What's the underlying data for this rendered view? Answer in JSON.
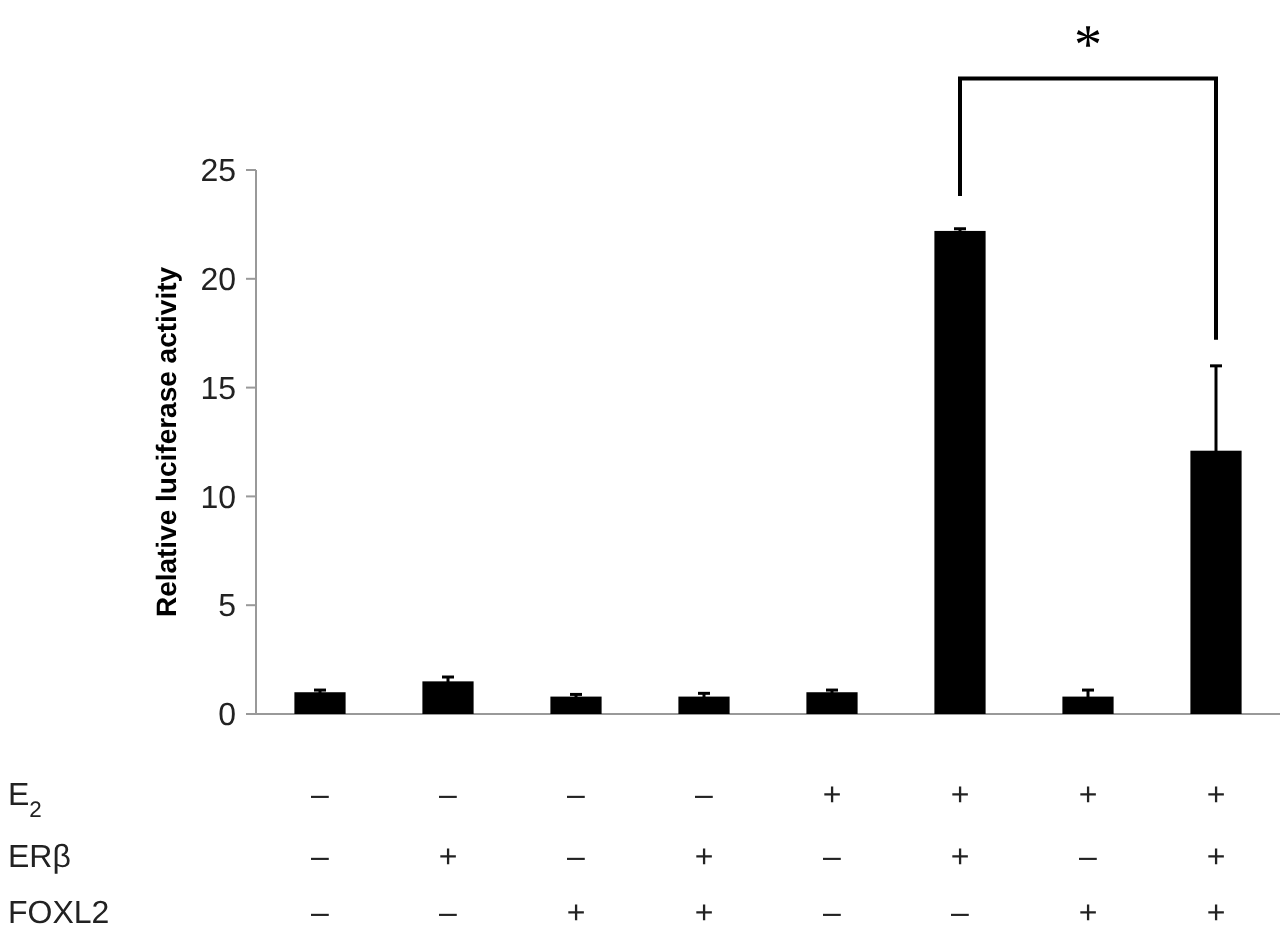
{
  "chart_data": {
    "type": "bar",
    "ylabel": "Relative luciferase activity",
    "categories": [
      "–\n–\n–",
      "–\n+\n–",
      "–\n–\n+",
      "–\n+\n+",
      "+\n–\n–",
      "+\n+\n–",
      "+\n–\n+",
      "+\n+\n+"
    ],
    "values": [
      1.0,
      1.5,
      0.8,
      0.8,
      1.0,
      22.2,
      0.8,
      12.1
    ],
    "errors": [
      0.1,
      0.2,
      0.1,
      0.15,
      0.1,
      0.1,
      0.3,
      3.9
    ],
    "color": "#000000",
    "ylim": [
      0,
      25
    ],
    "yticks": [
      0,
      5,
      10,
      15,
      20,
      25
    ],
    "grid": false,
    "annotations": [
      "*",
      "E$_{2}$",
      "ERβ",
      "FOXL2"
    ]
  }
}
